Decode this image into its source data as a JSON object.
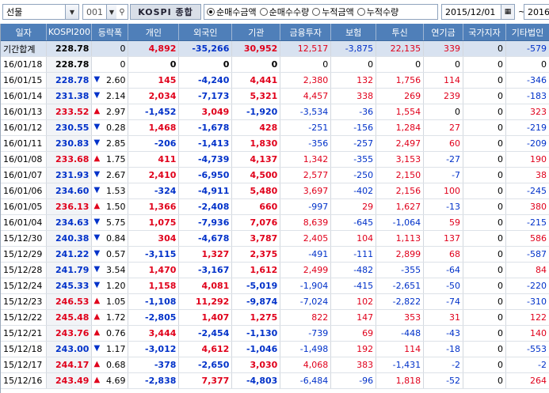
{
  "toolbar": {
    "market_select": "선물",
    "code_value": "001",
    "code_name": "KOSPI 종합",
    "radios": [
      {
        "label": "순매수금액",
        "selected": true
      },
      {
        "label": "순매수수량",
        "selected": false
      },
      {
        "label": "누적금액",
        "selected": false
      },
      {
        "label": "누적수량",
        "selected": false
      }
    ],
    "date_from": "2015/12/01",
    "date_sep": "~",
    "date_to": "2016/"
  },
  "columns": [
    "일자",
    "KOSPI200",
    "등락폭",
    "개인",
    "외국인",
    "기관",
    "금융투자",
    "보험",
    "투신",
    "연기금",
    "국가지자",
    "기타법인"
  ],
  "colors": {
    "up": "#e0001b",
    "down": "#0031c9",
    "header": "#4f7fb9",
    "summary_row": "#d8e2f0"
  },
  "rows": [
    {
      "date": "기간합계",
      "k200": "228.78",
      "dir": "",
      "chg": "0",
      "ind": "4,892",
      "frn": "-35,266",
      "ins": "30,952",
      "fin": "12,517",
      "insu": "-3,875",
      "trust": "22,135",
      "pen": "339",
      "gov": "0",
      "etc": "-579"
    },
    {
      "date": "16/01/18",
      "k200": "228.78",
      "dir": "",
      "chg": "0",
      "ind": "0",
      "frn": "0",
      "ins": "0",
      "fin": "0",
      "insu": "0",
      "trust": "0",
      "pen": "0",
      "gov": "0",
      "etc": "0"
    },
    {
      "date": "16/01/15",
      "k200": "228.78",
      "dir": "down",
      "chg": "2.60",
      "ind": "145",
      "frn": "-4,240",
      "ins": "4,441",
      "fin": "2,380",
      "insu": "132",
      "trust": "1,756",
      "pen": "114",
      "gov": "0",
      "etc": "-346"
    },
    {
      "date": "16/01/14",
      "k200": "231.38",
      "dir": "down",
      "chg": "2.14",
      "ind": "2,034",
      "frn": "-7,173",
      "ins": "5,321",
      "fin": "4,457",
      "insu": "338",
      "trust": "269",
      "pen": "239",
      "gov": "0",
      "etc": "-183"
    },
    {
      "date": "16/01/13",
      "k200": "233.52",
      "dir": "up",
      "chg": "2.97",
      "ind": "-1,452",
      "frn": "3,049",
      "ins": "-1,920",
      "fin": "-3,534",
      "insu": "-36",
      "trust": "1,554",
      "pen": "0",
      "gov": "0",
      "etc": "323"
    },
    {
      "date": "16/01/12",
      "k200": "230.55",
      "dir": "down",
      "chg": "0.28",
      "ind": "1,468",
      "frn": "-1,678",
      "ins": "428",
      "fin": "-251",
      "insu": "-156",
      "trust": "1,284",
      "pen": "27",
      "gov": "0",
      "etc": "-219"
    },
    {
      "date": "16/01/11",
      "k200": "230.83",
      "dir": "down",
      "chg": "2.85",
      "ind": "-206",
      "frn": "-1,413",
      "ins": "1,830",
      "fin": "-356",
      "insu": "-257",
      "trust": "2,497",
      "pen": "60",
      "gov": "0",
      "etc": "-209"
    },
    {
      "date": "16/01/08",
      "k200": "233.68",
      "dir": "up",
      "chg": "1.75",
      "ind": "411",
      "frn": "-4,739",
      "ins": "4,137",
      "fin": "1,342",
      "insu": "-355",
      "trust": "3,153",
      "pen": "-27",
      "gov": "0",
      "etc": "190"
    },
    {
      "date": "16/01/07",
      "k200": "231.93",
      "dir": "down",
      "chg": "2.67",
      "ind": "2,410",
      "frn": "-6,950",
      "ins": "4,500",
      "fin": "2,577",
      "insu": "-250",
      "trust": "2,150",
      "pen": "-7",
      "gov": "0",
      "etc": "38"
    },
    {
      "date": "16/01/06",
      "k200": "234.60",
      "dir": "down",
      "chg": "1.53",
      "ind": "-324",
      "frn": "-4,911",
      "ins": "5,480",
      "fin": "3,697",
      "insu": "-402",
      "trust": "2,156",
      "pen": "100",
      "gov": "0",
      "etc": "-245"
    },
    {
      "date": "16/01/05",
      "k200": "236.13",
      "dir": "up",
      "chg": "1.50",
      "ind": "1,366",
      "frn": "-2,408",
      "ins": "660",
      "fin": "-997",
      "insu": "29",
      "trust": "1,627",
      "pen": "-13",
      "gov": "0",
      "etc": "380"
    },
    {
      "date": "16/01/04",
      "k200": "234.63",
      "dir": "down",
      "chg": "5.75",
      "ind": "1,075",
      "frn": "-7,936",
      "ins": "7,076",
      "fin": "8,639",
      "insu": "-645",
      "trust": "-1,064",
      "pen": "59",
      "gov": "0",
      "etc": "-215"
    },
    {
      "date": "15/12/30",
      "k200": "240.38",
      "dir": "down",
      "chg": "0.84",
      "ind": "304",
      "frn": "-4,678",
      "ins": "3,787",
      "fin": "2,405",
      "insu": "104",
      "trust": "1,113",
      "pen": "137",
      "gov": "0",
      "etc": "586"
    },
    {
      "date": "15/12/29",
      "k200": "241.22",
      "dir": "down",
      "chg": "0.57",
      "ind": "-3,115",
      "frn": "1,327",
      "ins": "2,375",
      "fin": "-491",
      "insu": "-111",
      "trust": "2,899",
      "pen": "68",
      "gov": "0",
      "etc": "-587"
    },
    {
      "date": "15/12/28",
      "k200": "241.79",
      "dir": "down",
      "chg": "3.54",
      "ind": "1,470",
      "frn": "-3,167",
      "ins": "1,612",
      "fin": "2,499",
      "insu": "-482",
      "trust": "-355",
      "pen": "-64",
      "gov": "0",
      "etc": "84"
    },
    {
      "date": "15/12/24",
      "k200": "245.33",
      "dir": "down",
      "chg": "1.20",
      "ind": "1,158",
      "frn": "4,081",
      "ins": "-5,019",
      "fin": "-1,904",
      "insu": "-415",
      "trust": "-2,651",
      "pen": "-50",
      "gov": "0",
      "etc": "-220"
    },
    {
      "date": "15/12/23",
      "k200": "246.53",
      "dir": "up",
      "chg": "1.05",
      "ind": "-1,108",
      "frn": "11,292",
      "ins": "-9,874",
      "fin": "-7,024",
      "insu": "102",
      "trust": "-2,822",
      "pen": "-74",
      "gov": "0",
      "etc": "-310"
    },
    {
      "date": "15/12/22",
      "k200": "245.48",
      "dir": "up",
      "chg": "1.72",
      "ind": "-2,805",
      "frn": "1,407",
      "ins": "1,275",
      "fin": "822",
      "insu": "147",
      "trust": "353",
      "pen": "31",
      "gov": "0",
      "etc": "122"
    },
    {
      "date": "15/12/21",
      "k200": "243.76",
      "dir": "up",
      "chg": "0.76",
      "ind": "3,444",
      "frn": "-2,454",
      "ins": "-1,130",
      "fin": "-739",
      "insu": "69",
      "trust": "-448",
      "pen": "-43",
      "gov": "0",
      "etc": "140"
    },
    {
      "date": "15/12/18",
      "k200": "243.00",
      "dir": "down",
      "chg": "1.17",
      "ind": "-3,012",
      "frn": "4,612",
      "ins": "-1,046",
      "fin": "-1,498",
      "insu": "192",
      "trust": "114",
      "pen": "-18",
      "gov": "0",
      "etc": "-553"
    },
    {
      "date": "15/12/17",
      "k200": "244.17",
      "dir": "up",
      "chg": "0.68",
      "ind": "-378",
      "frn": "-2,650",
      "ins": "3,030",
      "fin": "4,068",
      "insu": "383",
      "trust": "-1,431",
      "pen": "-2",
      "gov": "0",
      "etc": "-2"
    },
    {
      "date": "15/12/16",
      "k200": "243.49",
      "dir": "up",
      "chg": "4.69",
      "ind": "-2,838",
      "frn": "7,377",
      "ins": "-4,803",
      "fin": "-6,484",
      "insu": "-96",
      "trust": "1,818",
      "pen": "-52",
      "gov": "0",
      "etc": "264"
    }
  ]
}
